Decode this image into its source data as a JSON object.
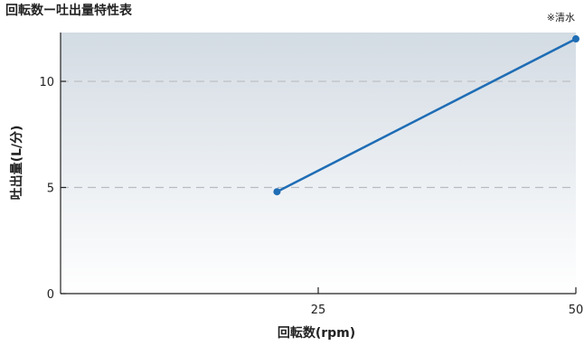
{
  "chart_data": {
    "type": "line",
    "title": "回転数ー吐出量特性表",
    "note": "※清水",
    "xlabel": "回転数(rpm)",
    "ylabel": "吐出量(L/分)",
    "xlim": [
      0,
      50
    ],
    "ylim": [
      0,
      12.3
    ],
    "x_ticks": [
      25,
      50
    ],
    "y_ticks": [
      0,
      5,
      10
    ],
    "y_tick_labels": [
      "0",
      "5",
      "10"
    ],
    "x_tick_labels": [
      "25",
      "50"
    ],
    "grid": "horizontal dashed at 5 and 10",
    "series": [
      {
        "x": [
          21,
          50
        ],
        "values": [
          4.8,
          12
        ]
      }
    ],
    "colors": {
      "line": "#1f6db5",
      "grid": "#b8bcc0",
      "axis": "#222222",
      "bg_top": "#d3dbe3",
      "bg_bottom": "#ffffff"
    }
  }
}
